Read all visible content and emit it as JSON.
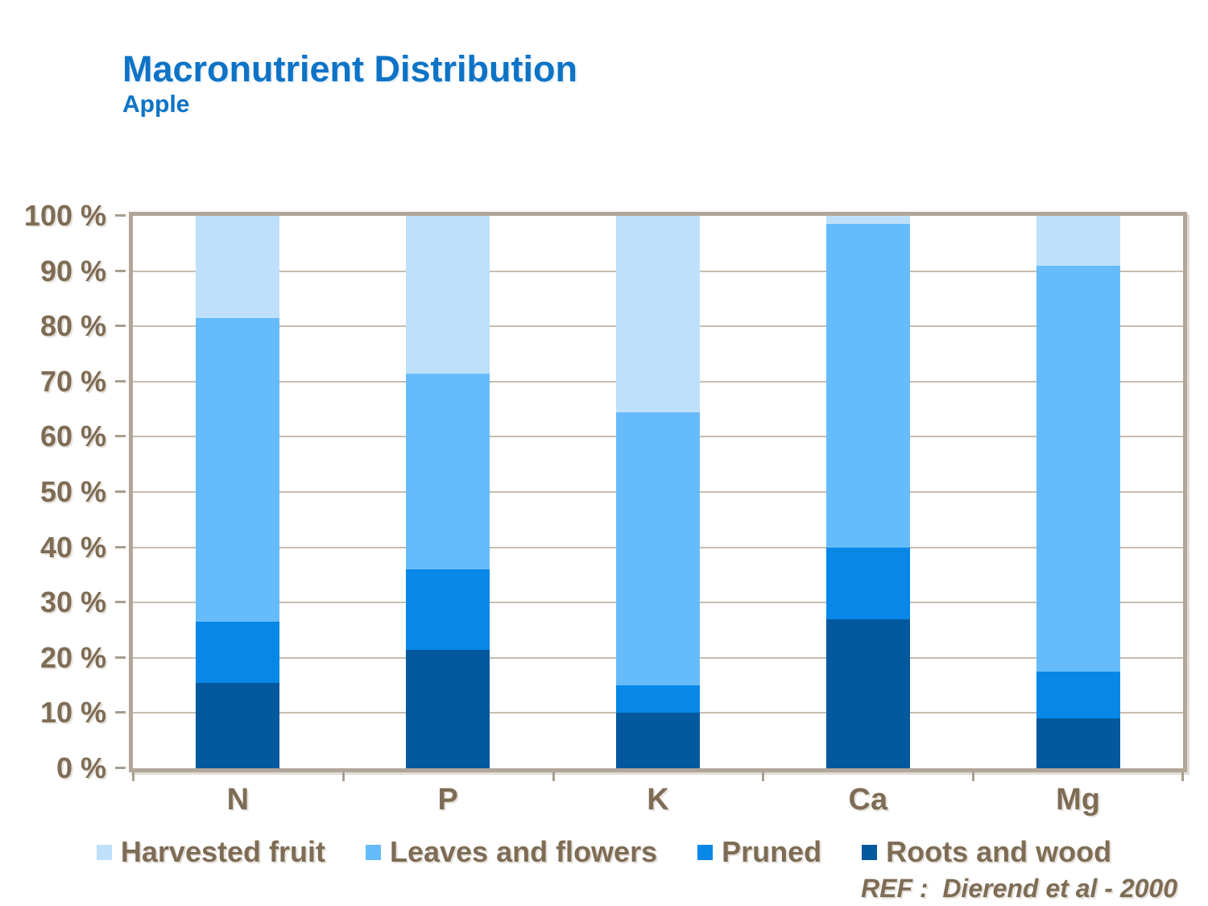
{
  "page": {
    "title": "Macronutrient Distribution",
    "subtitle": "Apple",
    "ref_label": "REF :  Dierend et al - 2000"
  },
  "colors": {
    "title_blue": "#0d73c6",
    "text_brown": "#7e6c55",
    "gridline": "#c6bdb0",
    "frame": "#b1a698",
    "tick": "#a89d8f",
    "background": "#ffffff"
  },
  "chart_data": {
    "type": "bar",
    "stacked": true,
    "title": "Macronutrient Distribution",
    "subtitle": "Apple",
    "xlabel": "",
    "ylabel": "",
    "ylim": [
      0,
      100
    ],
    "grid": true,
    "legend_position": "bottom",
    "categories": [
      "N",
      "P",
      "K",
      "Ca",
      "Mg"
    ],
    "yticks": [
      "100 %",
      "90 %",
      "80 %",
      "70 %",
      "60 %",
      "50 %",
      "40 %",
      "30 %",
      "20 %",
      "10 %",
      "0 %"
    ],
    "series": [
      {
        "name": "Harvested fruit",
        "color": "#bee0fb",
        "values": [
          18.5,
          28.5,
          35.5,
          1.5,
          9.0
        ]
      },
      {
        "name": "Leaves and flowers",
        "color": "#66bcfa",
        "values": [
          55.0,
          35.5,
          49.5,
          58.5,
          73.5
        ]
      },
      {
        "name": "Pruned",
        "color": "#0787e8",
        "values": [
          11.0,
          14.5,
          5.0,
          13.0,
          8.5
        ]
      },
      {
        "name": "Roots and wood",
        "color": "#03589e",
        "values": [
          15.5,
          21.5,
          10.0,
          27.0,
          9.0
        ]
      }
    ],
    "annotation": "REF :  Dierend et al - 2000"
  }
}
